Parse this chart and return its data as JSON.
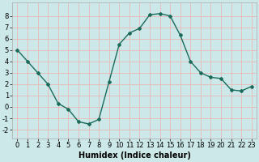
{
  "x": [
    0,
    1,
    2,
    3,
    4,
    5,
    6,
    7,
    8,
    9,
    10,
    11,
    12,
    13,
    14,
    15,
    16,
    17,
    18,
    19,
    20,
    21,
    22,
    23
  ],
  "y": [
    5,
    4,
    3,
    2,
    0.3,
    -0.2,
    -1.3,
    -1.5,
    -1.1,
    2.2,
    5.5,
    6.5,
    6.9,
    8.1,
    8.2,
    8.0,
    6.3,
    4.0,
    3.0,
    2.6,
    2.5,
    1.5,
    1.4,
    1.8
  ],
  "line_color": "#1a6b5a",
  "marker": "D",
  "marker_size": 2,
  "background_color": "#cce8e8",
  "grid_color": "#e8b8b8",
  "xlabel": "Humidex (Indice chaleur)",
  "xlabel_fontsize": 7,
  "xlim": [
    -0.5,
    23.5
  ],
  "ylim": [
    -2.8,
    9.2
  ],
  "yticks": [
    -2,
    -1,
    0,
    1,
    2,
    3,
    4,
    5,
    6,
    7,
    8
  ],
  "xticks": [
    0,
    1,
    2,
    3,
    4,
    5,
    6,
    7,
    8,
    9,
    10,
    11,
    12,
    13,
    14,
    15,
    16,
    17,
    18,
    19,
    20,
    21,
    22,
    23
  ],
  "tick_fontsize": 6,
  "line_width": 1.0
}
